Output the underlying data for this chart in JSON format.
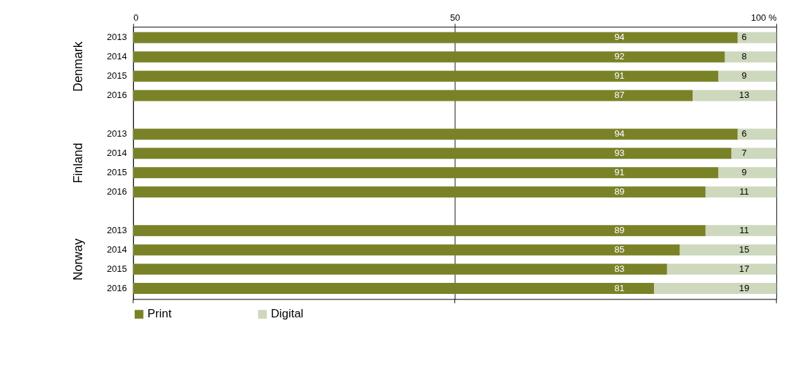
{
  "chart_data": {
    "type": "bar",
    "orientation": "horizontal",
    "stacked": true,
    "categories": [
      "2013",
      "2014",
      "2015",
      "2016",
      null,
      "2013",
      "2014",
      "2015",
      "2016",
      null,
      "2013",
      "2014",
      "2015",
      "2016"
    ],
    "series": [
      {
        "name": "Print",
        "color": "#7a8228",
        "values": [
          94,
          92,
          91,
          87,
          null,
          94,
          93,
          91,
          89,
          null,
          89,
          85,
          83,
          81
        ]
      },
      {
        "name": "Digital",
        "color": "#cdd8bd",
        "values": [
          6,
          8,
          9,
          13,
          null,
          6,
          7,
          9,
          11,
          null,
          11,
          15,
          17,
          19
        ]
      }
    ],
    "annotations": [
      "Denmark",
      "Finland",
      "Norway"
    ],
    "xlim": [
      0,
      100
    ],
    "xticks": [
      0,
      50,
      {
        "value": 100,
        "label": "100 %"
      }
    ],
    "grid": "x",
    "data_labels": true,
    "legend": "bottom"
  }
}
